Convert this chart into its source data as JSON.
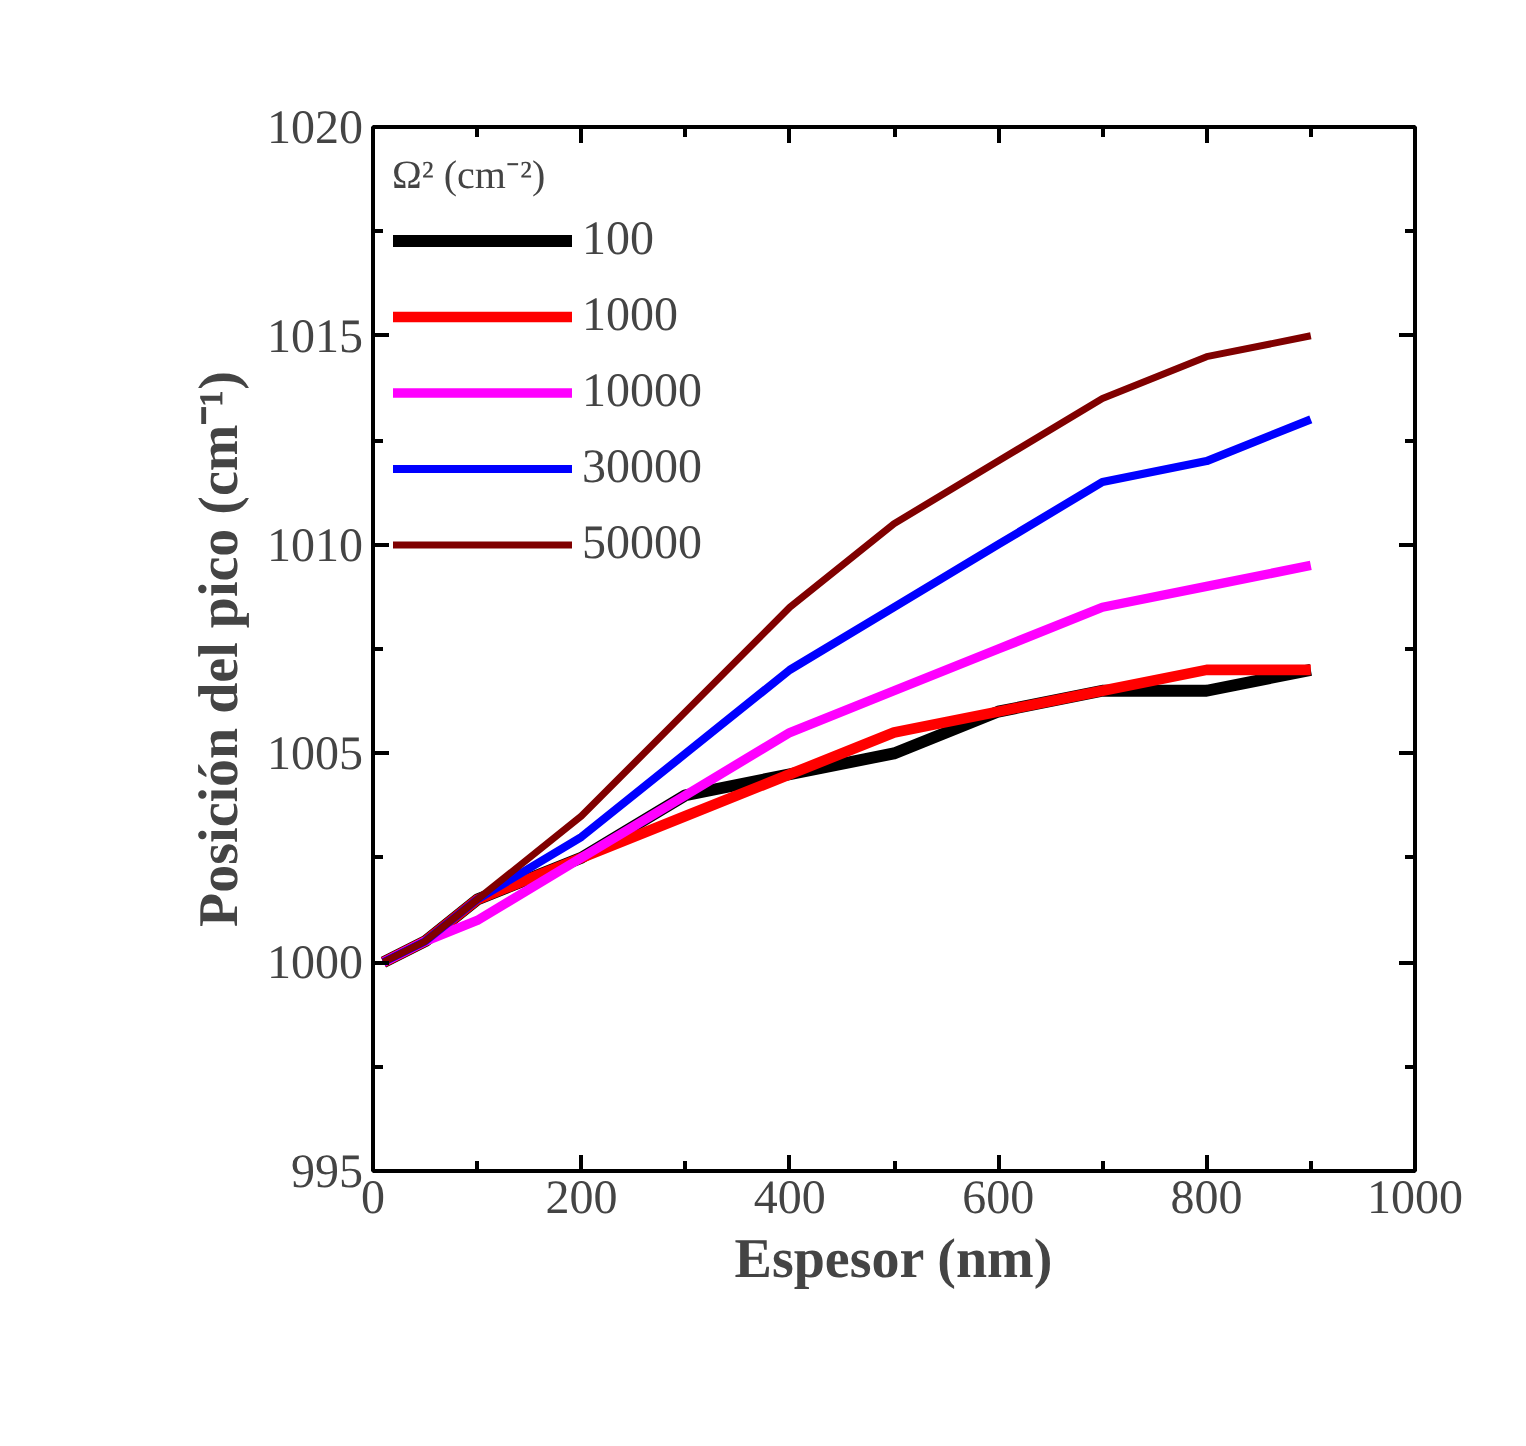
{
  "chart_data": {
    "type": "line",
    "xlabel": "Espesor (nm)",
    "ylabel": "Posición del pico (cm⁻¹)",
    "legend_title": "Ω² (cm⁻²)",
    "legend": "top left",
    "grid": false,
    "x": [
      10,
      50,
      100,
      200,
      300,
      400,
      500,
      600,
      700,
      800,
      900
    ],
    "xlim": [
      0,
      1000
    ],
    "xticks": [
      0,
      200,
      400,
      600,
      800,
      1000
    ],
    "ylim": [
      995,
      1020
    ],
    "yticks": [
      995,
      1000,
      1005,
      1010,
      1015,
      1020
    ],
    "series": [
      {
        "name": "100",
        "color": "#000000",
        "values": [
          1000,
          1000.5,
          1001.5,
          1002.5,
          1004,
          1004.5,
          1005,
          1006,
          1006.5,
          1006.5,
          1007
        ]
      },
      {
        "name": "1000",
        "color": "#ff0000",
        "values": [
          1000,
          1000.5,
          1001.5,
          1002.5,
          1003.5,
          1004.5,
          1005.5,
          1006,
          1006.5,
          1007,
          1007
        ]
      },
      {
        "name": "10000",
        "color": "#ff00ff",
        "values": [
          1000,
          1000.5,
          1001,
          1002.5,
          1004,
          1005.5,
          1006.5,
          1007.5,
          1008.5,
          1009,
          1009.5
        ]
      },
      {
        "name": "30000",
        "color": "#0000ff",
        "values": [
          1000,
          1000.5,
          1001.5,
          1003,
          1005,
          1007,
          1008.5,
          1010,
          1011.5,
          1012,
          1013
        ]
      },
      {
        "name": "50000",
        "color": "#800000",
        "values": [
          1000,
          1000.5,
          1001.5,
          1003.5,
          1006,
          1008.5,
          1010.5,
          1012,
          1013.5,
          1014.5,
          1015
        ]
      }
    ]
  }
}
